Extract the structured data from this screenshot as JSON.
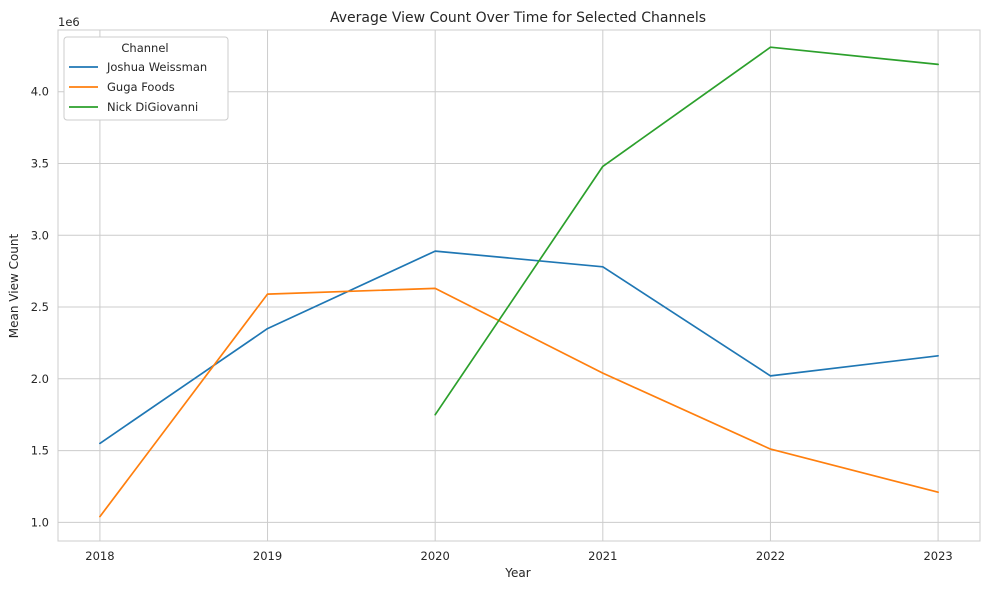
{
  "chart_data": {
    "type": "line",
    "title": "Average View Count Over Time for Selected Channels",
    "xlabel": "Year",
    "ylabel": "Mean View Count",
    "y_scale_label": "1e6",
    "x": [
      2018,
      2019,
      2020,
      2021,
      2022,
      2023
    ],
    "x_tick_labels": [
      "2018",
      "2019",
      "2020",
      "2021",
      "2022",
      "2023"
    ],
    "xlim": [
      2017.75,
      2023.25
    ],
    "ylim": [
      0.87,
      4.43
    ],
    "y_ticks": [
      1.0,
      1.5,
      2.0,
      2.5,
      3.0,
      3.5,
      4.0
    ],
    "y_tick_labels": [
      "1.0",
      "1.5",
      "2.0",
      "2.5",
      "3.0",
      "3.5",
      "4.0"
    ],
    "grid": true,
    "legend": {
      "title": "Channel",
      "placement": "top-left"
    },
    "series": [
      {
        "name": "Joshua Weissman",
        "color": "#1f77b4",
        "values": [
          1.55,
          2.35,
          2.89,
          2.78,
          2.02,
          2.16
        ]
      },
      {
        "name": "Guga Foods",
        "color": "#ff7f0e",
        "values": [
          1.04,
          2.59,
          2.63,
          2.04,
          1.51,
          1.21
        ]
      },
      {
        "name": "Nick DiGiovanni",
        "color": "#2ca02c",
        "values": [
          null,
          null,
          1.75,
          3.48,
          4.31,
          4.19
        ]
      }
    ]
  }
}
